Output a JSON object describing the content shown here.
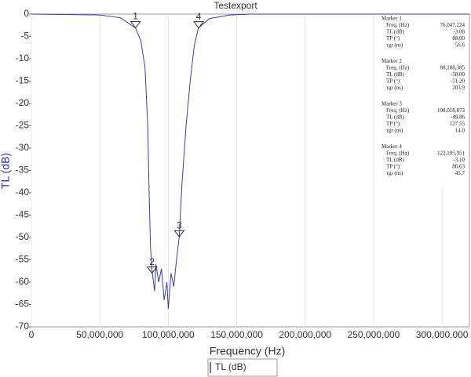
{
  "chart_data": {
    "type": "line",
    "title": "Testexport",
    "xlabel": "Frequency (Hz)",
    "ylabel": "TL (dB)",
    "x": [
      0,
      50000000,
      65000000,
      76000000,
      80000000,
      83000000,
      85000000,
      86000000,
      87000000,
      88000000,
      90000000,
      91000000,
      93000000,
      95000000,
      97000000,
      99000000,
      100000000,
      102000000,
      104000000,
      106000000,
      108000000,
      110000000,
      113000000,
      116000000,
      119000000,
      122000000,
      130000000,
      145000000,
      160000000,
      320000000
    ],
    "series": [
      {
        "name": "TL (dB)",
        "color": "#3a3f9a",
        "values": [
          0,
          -0.2,
          -0.8,
          -3.08,
          -6,
          -12,
          -25,
          -40,
          -52,
          -57,
          -62,
          -56,
          -60,
          -57,
          -64,
          -60,
          -66,
          -58,
          -61,
          -55,
          -49.86,
          -38,
          -25,
          -15,
          -7,
          -3.1,
          -1,
          -0.2,
          0,
          0
        ]
      }
    ],
    "xlim": [
      0,
      320000000
    ],
    "ylim": [
      -70,
      0
    ],
    "xticks": [
      0,
      {
        "value": 50000000,
        "label": "50,000,000"
      },
      {
        "value": 100000000,
        "label": "100,000,000"
      },
      {
        "value": 150000000,
        "label": "150,000,000"
      },
      {
        "value": 200000000,
        "label": "200,000,000"
      },
      {
        "value": 250000000,
        "label": "250,000,000"
      },
      {
        "value": 300000000,
        "label": "300,000,000"
      }
    ],
    "yticks": [
      0,
      -5,
      -10,
      -15,
      -20,
      -25,
      -30,
      -35,
      -40,
      -45,
      -50,
      -55,
      -60,
      -65,
      -70
    ],
    "grid": true,
    "ylabel_color": "#2e2f9e",
    "markers": [
      {
        "label": "1",
        "x": 76047224,
        "y": -3.08,
        "name": "Marker 1",
        "rows": [
          [
            "Freq. (Hz)",
            "76,047,224"
          ],
          [
            "TL (dB)",
            "-3.08"
          ],
          [
            "TP (°)",
            "88.00"
          ],
          [
            "τgr (ns)",
            "56.6"
          ]
        ]
      },
      {
        "label": "2",
        "x": 88108385,
        "y": -58.0,
        "name": "Marker 2",
        "rows": [
          [
            "Freq. (Hz)",
            "88,108,385"
          ],
          [
            "TL (dB)",
            "-58.00"
          ],
          [
            "TP (°)",
            "-51.20"
          ],
          [
            "τgr (ns)",
            "203.9"
          ]
        ]
      },
      {
        "label": "3",
        "x": 108018873,
        "y": -49.86,
        "name": "Marker 3",
        "rows": [
          [
            "Freq. (Hz)",
            "108,018,873"
          ],
          [
            "TL (dB)",
            "-49.86"
          ],
          [
            "TP (°)",
            "127.55"
          ],
          [
            "τgr (ns)",
            "14.0"
          ]
        ]
      },
      {
        "label": "4",
        "x": 122185951,
        "y": -3.1,
        "name": "Marker 4",
        "rows": [
          [
            "Freq. (Hz)",
            "122,185,951"
          ],
          [
            "TL (dB)",
            "-3.10"
          ],
          [
            "TP (°)",
            "86.63"
          ],
          [
            "τgr (ns)",
            "45.7"
          ]
        ]
      }
    ]
  }
}
